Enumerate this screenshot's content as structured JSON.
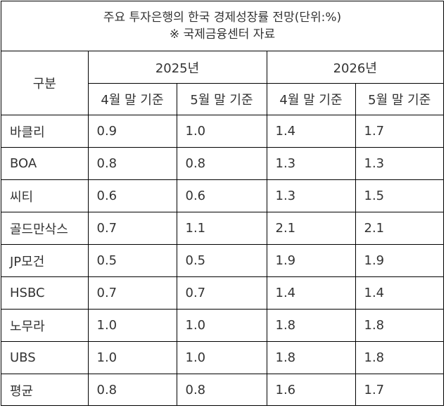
{
  "title": {
    "line1": "주요 투자은행의 한국 경제성장률 전망(단위:%)",
    "line2": "※ 국제금융센터 자료"
  },
  "header": {
    "label": "구분",
    "years": [
      "2025년",
      "2026년"
    ],
    "subs": [
      "4월 말 기준",
      "5월 말 기준",
      "4월 말 기준",
      "5월 말 기준"
    ]
  },
  "rows": [
    {
      "name": "바클리",
      "values": [
        "0.9",
        "1.0",
        "1.4",
        "1.7"
      ]
    },
    {
      "name": "BOA",
      "values": [
        "0.8",
        "0.8",
        "1.3",
        "1.3"
      ]
    },
    {
      "name": "씨티",
      "values": [
        "0.6",
        "0.6",
        "1.3",
        "1.5"
      ]
    },
    {
      "name": "골드만삭스",
      "values": [
        "0.7",
        "1.1",
        "2.1",
        "2.1"
      ]
    },
    {
      "name": "JP모건",
      "values": [
        "0.5",
        "0.5",
        "1.9",
        "1.9"
      ]
    },
    {
      "name": "HSBC",
      "values": [
        "0.7",
        "0.7",
        "1.4",
        "1.4"
      ]
    },
    {
      "name": "노무라",
      "values": [
        "1.0",
        "1.0",
        "1.8",
        "1.8"
      ]
    },
    {
      "name": "UBS",
      "values": [
        "1.0",
        "1.0",
        "1.8",
        "1.8"
      ]
    },
    {
      "name": "평균",
      "values": [
        "0.8",
        "0.8",
        "1.6",
        "1.7"
      ]
    }
  ]
}
